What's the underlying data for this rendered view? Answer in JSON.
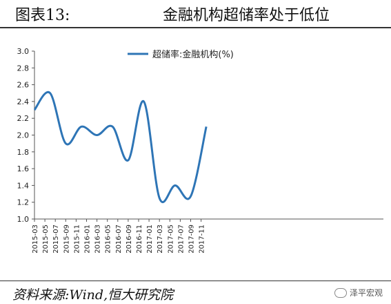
{
  "figure": {
    "label": "图表13:",
    "title": "金融机构超储率处于低位"
  },
  "footer": {
    "source": "资料来源:Wind,恒大研究院",
    "watermark": "泽平宏观"
  },
  "chart_data": {
    "type": "line",
    "title": "",
    "xlabel": "",
    "ylabel": "",
    "ylim": [
      1.0,
      3.0
    ],
    "yticks": [
      "1.0",
      "1.2",
      "1.4",
      "1.6",
      "1.8",
      "2.0",
      "2.2",
      "2.4",
      "2.6",
      "2.8",
      "3.0"
    ],
    "xticks": [
      "2015-03",
      "2015-05",
      "2015-07",
      "2015-09",
      "2015-11",
      "2016-01",
      "2016-03",
      "2016-05",
      "2016-07",
      "2016-09",
      "2016-11",
      "2017-01",
      "2017-03",
      "2017-05",
      "2017-07",
      "2017-09",
      "2017-11"
    ],
    "x": [
      "2015-03",
      "2015-06",
      "2015-09",
      "2015-12",
      "2016-03",
      "2016-06",
      "2016-09",
      "2016-12",
      "2017-03",
      "2017-06",
      "2017-09",
      "2017-12"
    ],
    "series": [
      {
        "name": "超储率:金融机构(%)",
        "color": "#2E75B6",
        "values": [
          2.3,
          2.5,
          1.9,
          2.1,
          2.0,
          2.1,
          1.7,
          2.4,
          1.25,
          1.4,
          1.27,
          2.1
        ]
      }
    ],
    "legend": "top-center",
    "grid": false
  }
}
